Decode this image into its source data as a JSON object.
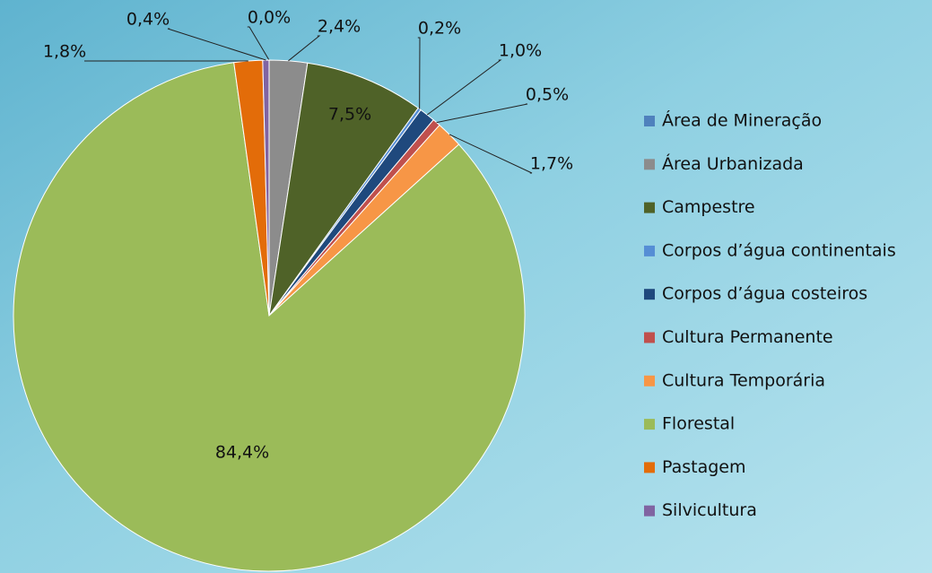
{
  "chart_data": {
    "type": "pie",
    "categories": [
      "Área de Mineração",
      "Área Urbanizada",
      "Campestre",
      "Corpos d’água continentais",
      "Corpos d’água costeiros",
      "Cultura Permanente",
      "Cultura Temporária",
      "Florestal",
      "Pastagem",
      "Silvicultura"
    ],
    "values": [
      0.0,
      2.4,
      7.5,
      0.2,
      1.0,
      0.5,
      1.7,
      84.4,
      1.8,
      0.4
    ],
    "value_labels": [
      "0,0%",
      "2,4%",
      "7,5%",
      "0,2%",
      "1,0%",
      "0,5%",
      "1,7%",
      "84,4%",
      "1,8%",
      "0,4%"
    ],
    "colors": [
      "#4f81bd",
      "#8c8c8c",
      "#4f6228",
      "#558ed5",
      "#1f497d",
      "#c0504d",
      "#f79646",
      "#9bbb59",
      "#e36c09",
      "#8064a2"
    ],
    "legend": "right"
  }
}
